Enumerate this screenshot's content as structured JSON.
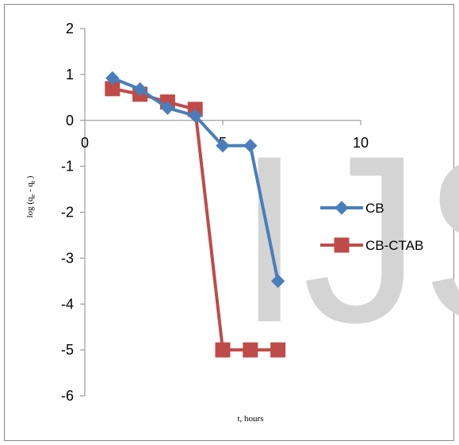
{
  "watermark": "IJS",
  "chart_data": {
    "type": "line",
    "title": "",
    "xlabel": "t, hours",
    "ylabel_main": "log (q",
    "ylabel_sub_e": "e",
    "ylabel_mid": " -  q",
    "ylabel_sub_t": "t",
    "ylabel_end": " )",
    "xlim": [
      0,
      10
    ],
    "ylim": [
      -6,
      2
    ],
    "xticks": [
      0,
      5,
      10
    ],
    "yticks": [
      2,
      1,
      0,
      -1,
      -2,
      -3,
      -4,
      -5,
      -6
    ],
    "grid": false,
    "legend_position": "right",
    "series": [
      {
        "name": "CB",
        "color": "#4a7ebb",
        "marker": "diamond",
        "x": [
          1,
          2,
          3,
          4,
          5,
          6,
          7
        ],
        "y": [
          0.92,
          0.68,
          0.27,
          0.1,
          -0.55,
          -0.55,
          -3.5
        ]
      },
      {
        "name": "CB-CTAB",
        "color": "#be4b48",
        "marker": "square",
        "x": [
          1,
          2,
          3,
          4,
          5,
          6,
          7
        ],
        "y": [
          0.69,
          0.57,
          0.4,
          0.24,
          -5.0,
          -5.0,
          -5.0
        ]
      }
    ]
  }
}
